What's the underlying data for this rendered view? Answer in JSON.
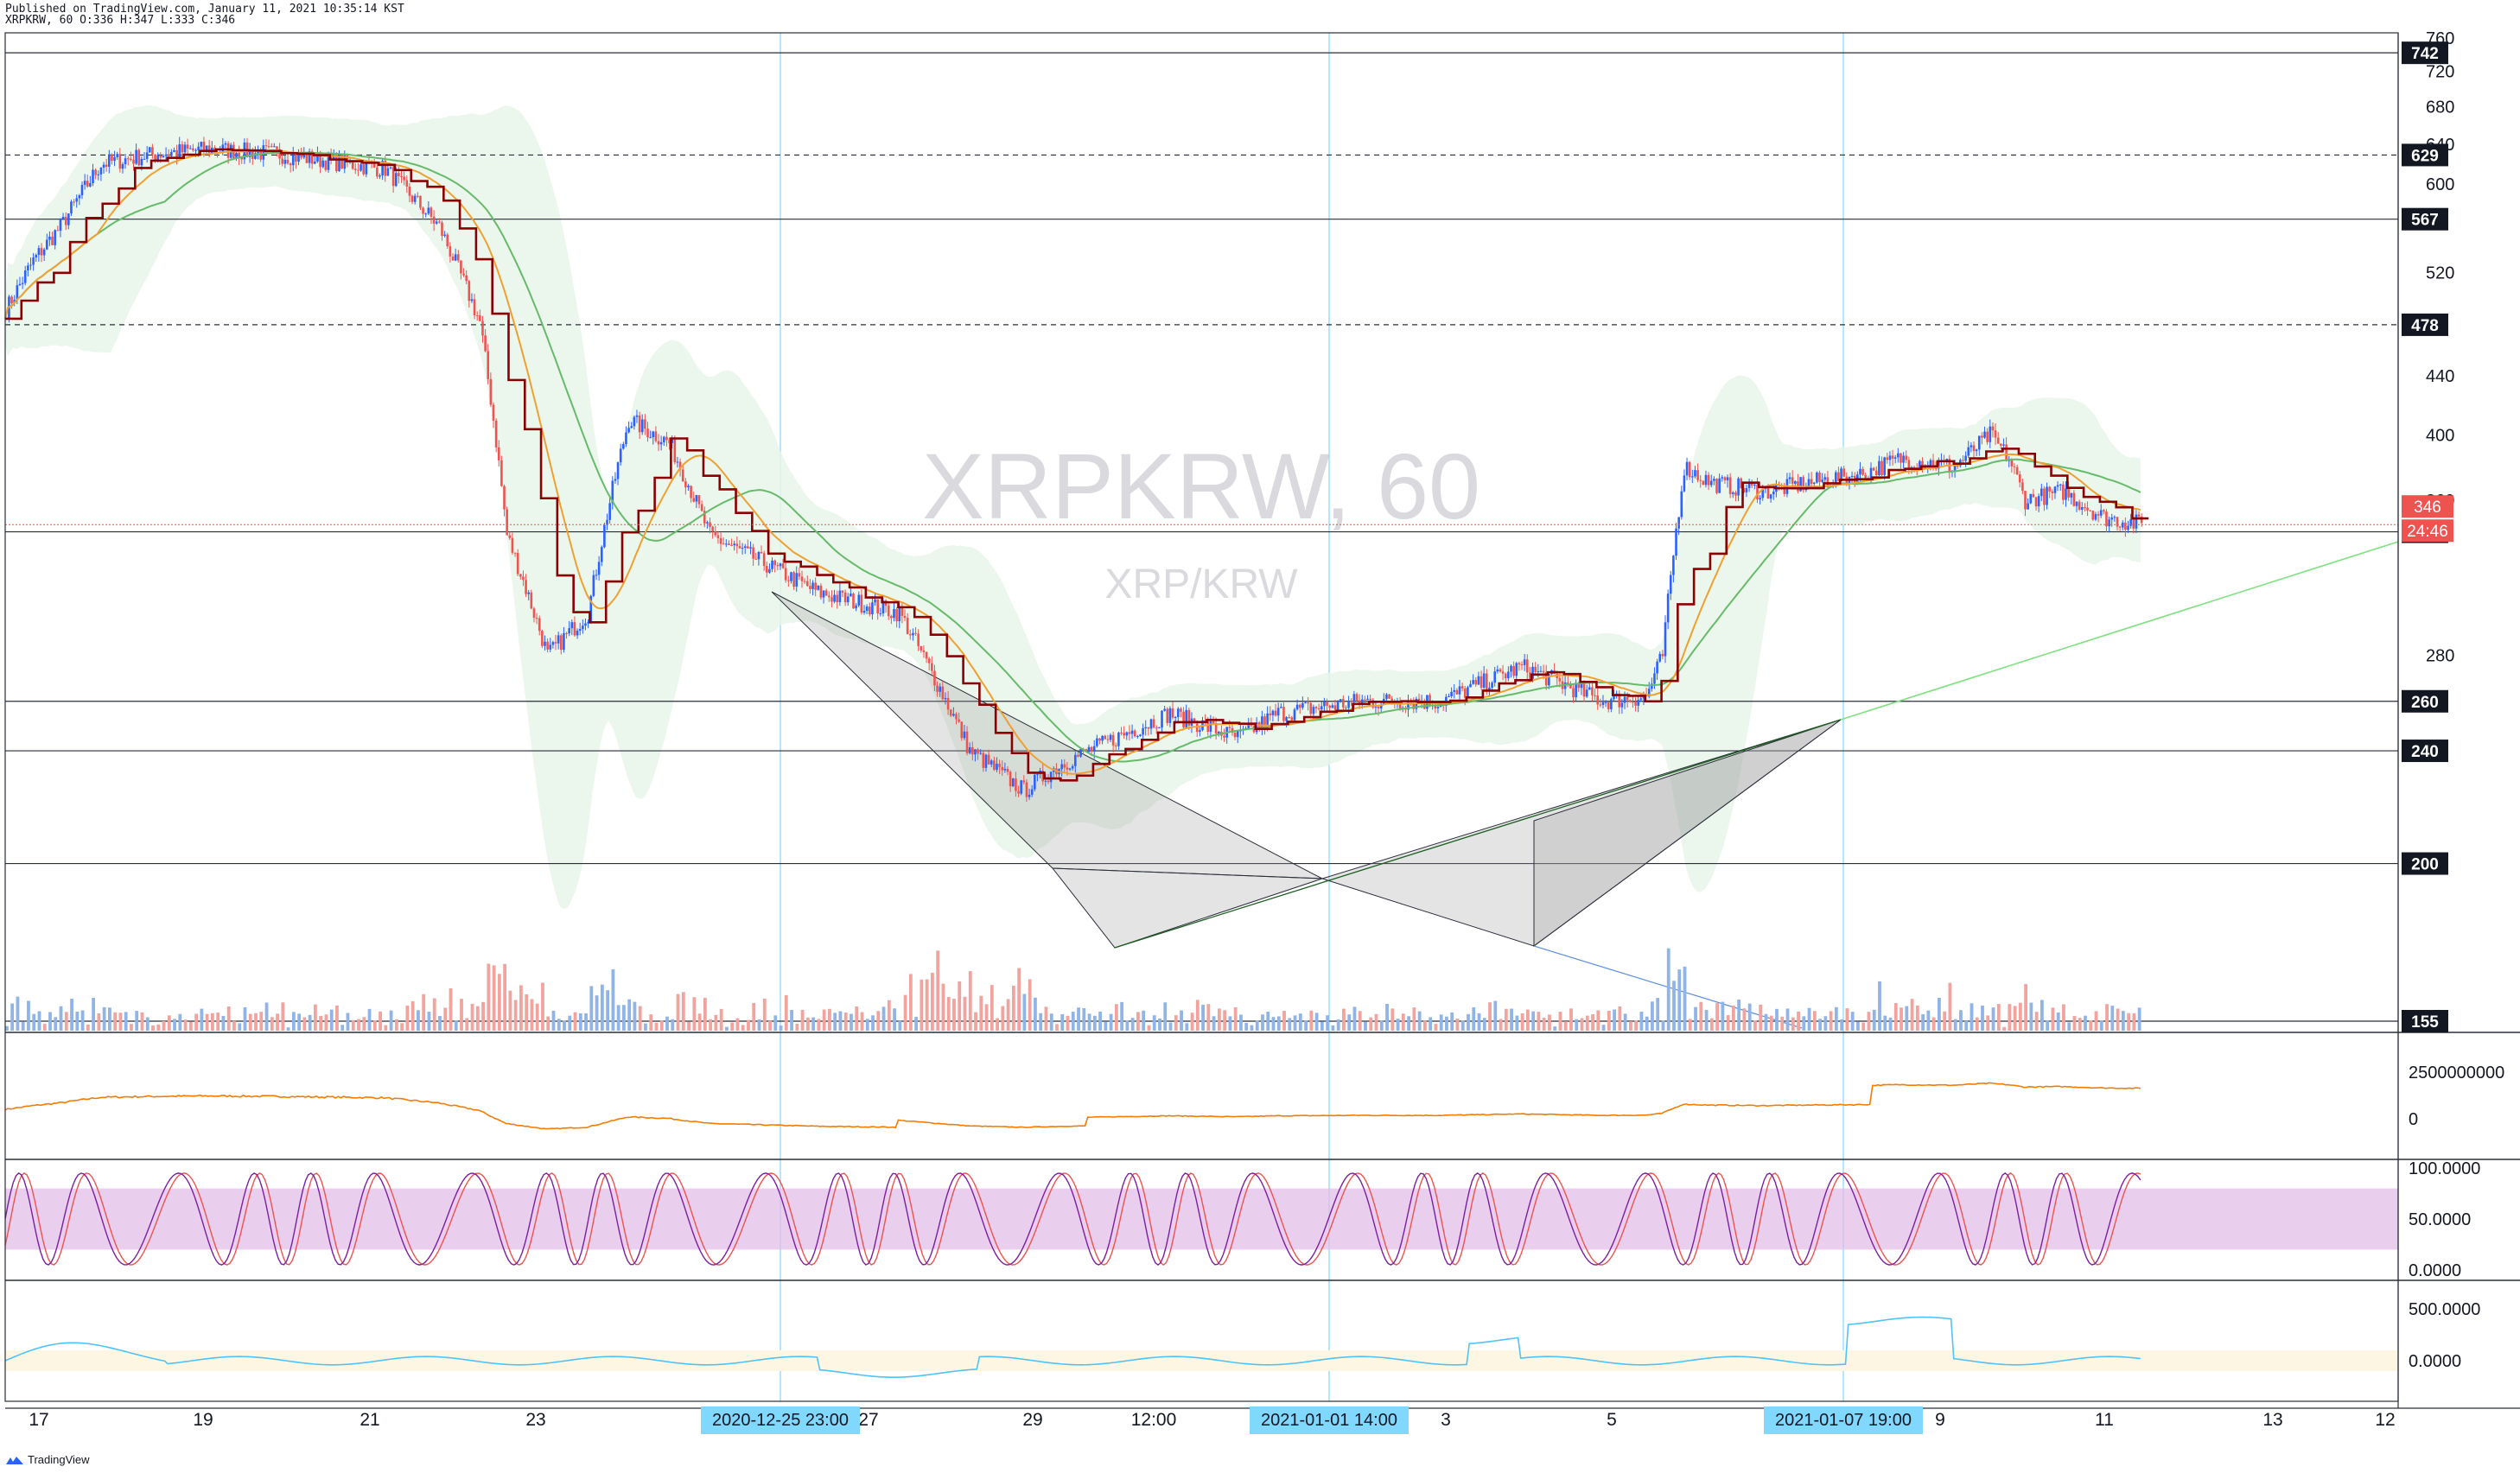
{
  "header": {
    "published": "Published on TradingView.com, January 11, 2021 10:35:14 KST",
    "ohlc": "XRPKRW, 60 O:336 H:347 L:333 C:346"
  },
  "watermark": {
    "symbol": "XRPKRW, 60",
    "pair": "XRP/KRW"
  },
  "footer": {
    "brand": "TradingView"
  },
  "colors": {
    "up": "#2962ff",
    "down": "#ef5350",
    "vol_up": "#90b4e8",
    "vol_down": "#f2a39e",
    "ma_dark": "#8b0000",
    "ma_orange": "#f0a030",
    "ma_green": "#66bb6a",
    "band_fill": "#e8f5e9",
    "obv": "#f57c00",
    "stoch_k": "#7b1fa2",
    "stoch_d": "#ef5350",
    "stoch_band": "#e1bee7",
    "cci": "#4fc3f7",
    "cci_band": "#fdf6e3",
    "vline": "#80d8ff"
  },
  "chart_data": [
    {
      "type": "candlestick",
      "title": "XRPKRW, 60",
      "subtitle": "XRP/KRW",
      "x_labels": [
        "17",
        "19",
        "21",
        "23",
        "25",
        "27",
        "29",
        "12:00",
        "3",
        "5",
        "9",
        "11",
        "13",
        "12"
      ],
      "highlighted_x_labels": [
        "2020-12-25  23:00",
        "2021-01-01  14:00",
        "2021-01-07  19:00"
      ],
      "y_ticks": [
        280,
        320,
        360,
        400,
        440,
        480,
        520,
        560,
        600,
        640,
        680,
        720,
        760
      ],
      "y_tick_labels": [
        "280",
        "",
        "360",
        "400",
        "440",
        "",
        "520",
        "",
        "600",
        "640",
        "680",
        "720",
        "760"
      ],
      "ylim": [
        150,
        762
      ],
      "horizontal_levels": [
        {
          "value": 742,
          "style": "solid"
        },
        {
          "value": 629,
          "style": "dashed"
        },
        {
          "value": 567,
          "style": "solid"
        },
        {
          "value": 478,
          "style": "dashed"
        },
        {
          "value": 342,
          "style": "solid"
        },
        {
          "value": 260,
          "style": "solid"
        },
        {
          "value": 240,
          "style": "solid"
        },
        {
          "value": 200,
          "style": "solid"
        },
        {
          "value": 155,
          "style": "solid"
        }
      ],
      "last_price": 346,
      "countdown": "24:46",
      "series_path_keypoints": {
        "x_index_hours": [
          0,
          10,
          20,
          35,
          55,
          75,
          100,
          140,
          160,
          175,
          185,
          200,
          215,
          230,
          245,
          260,
          280,
          300,
          330,
          356,
          376,
          390,
          410,
          430,
          455,
          470,
          500,
          530,
          560,
          590,
          606,
          612,
          620,
          630,
          650,
          665,
          685,
          700,
          720,
          733,
          740,
          746,
          760,
          775,
          790
        ],
        "close": [
          490,
          530,
          560,
          620,
          630,
          635,
          630,
          615,
          560,
          480,
          340,
          280,
          300,
          410,
          395,
          340,
          325,
          310,
          300,
          240,
          225,
          235,
          245,
          255,
          245,
          255,
          260,
          260,
          275,
          260,
          262,
          280,
          380,
          370,
          365,
          370,
          375,
          385,
          380,
          400,
          385,
          360,
          365,
          350,
          346
        ]
      }
    },
    {
      "type": "line",
      "name": "OBV",
      "y_tick_labels": [
        "2500000000",
        "0"
      ]
    },
    {
      "type": "line",
      "name": "Stochastic RSI",
      "y_tick_labels": [
        "100.0000",
        "50.0000",
        "0.0000"
      ],
      "band": [
        20,
        80
      ]
    },
    {
      "type": "line",
      "name": "CCI",
      "y_tick_labels": [
        "500.0000",
        "0.0000"
      ]
    }
  ]
}
